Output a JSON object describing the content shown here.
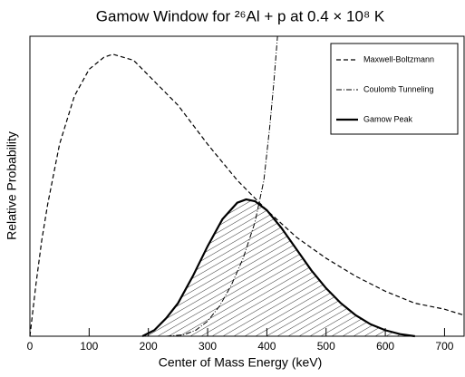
{
  "chart_data": {
    "type": "line",
    "title": "Gamow Window for ²⁶Al + p at 0.4 × 10⁸ K",
    "x_label": "Center of Mass Energy (keV)",
    "y_label": "Relative Probability",
    "xlim": [
      0,
      733
    ],
    "ylim": [
      0,
      1
    ],
    "xticks": [
      0,
      100,
      200,
      300,
      400,
      500,
      600,
      700
    ],
    "legend": "top-right",
    "series": [
      {
        "name": "Maxwell-Boltzmann",
        "color": "#000000",
        "style": "dashed",
        "width": 1.2,
        "x": [
          0,
          10,
          20,
          30,
          50,
          75,
          100,
          125,
          140,
          175,
          200,
          250,
          300,
          350,
          400,
          450,
          500,
          550,
          600,
          650,
          700,
          733
        ],
        "values": [
          0,
          0.17,
          0.32,
          0.44,
          0.64,
          0.8,
          0.89,
          0.93,
          0.94,
          0.92,
          0.87,
          0.77,
          0.64,
          0.52,
          0.42,
          0.33,
          0.26,
          0.2,
          0.15,
          0.11,
          0.09,
          0.07
        ]
      },
      {
        "name": "Coulomb Tunneling",
        "color": "#000000",
        "style": "dashdot",
        "width": 1,
        "x": [
          230,
          260,
          280,
          300,
          320,
          340,
          360,
          380,
          395,
          405,
          412,
          418
        ],
        "values": [
          0,
          0.005,
          0.02,
          0.05,
          0.1,
          0.17,
          0.26,
          0.38,
          0.52,
          0.7,
          0.85,
          1.0
        ]
      },
      {
        "name": "Gamow Peak",
        "color": "#000000",
        "style": "solid",
        "width": 2.2,
        "fill": "hatch",
        "x": [
          190,
          210,
          230,
          250,
          275,
          300,
          325,
          350,
          365,
          380,
          400,
          425,
          450,
          475,
          500,
          525,
          550,
          575,
          600,
          625,
          650
        ],
        "values": [
          0,
          0.02,
          0.06,
          0.11,
          0.2,
          0.3,
          0.39,
          0.445,
          0.456,
          0.45,
          0.42,
          0.36,
          0.29,
          0.22,
          0.16,
          0.11,
          0.07,
          0.04,
          0.02,
          0.007,
          0
        ]
      }
    ]
  }
}
